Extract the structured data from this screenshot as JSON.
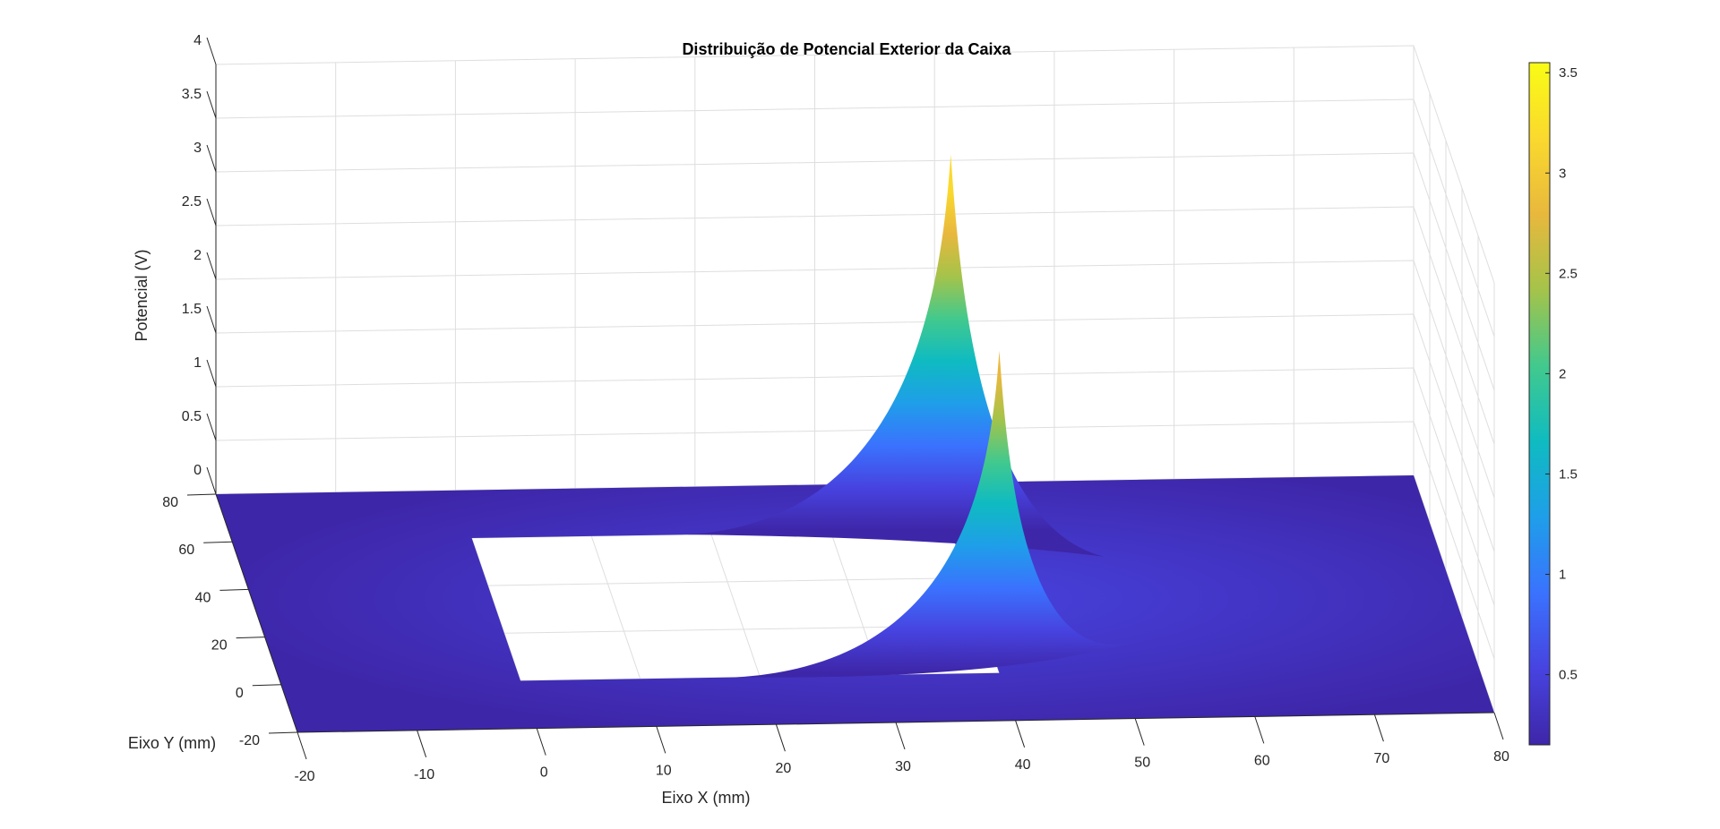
{
  "chart_data": {
    "type": "surface",
    "title": "Distribuição de Potencial Exterior da Caixa",
    "xlabel": "Eixo X (mm)",
    "ylabel": "Eixo Y (mm)",
    "zlabel": "Potencial (V)",
    "xlim": [
      -20,
      80
    ],
    "ylim": [
      -20,
      80
    ],
    "zlim": [
      0,
      4
    ],
    "x_ticks": [
      -20,
      -10,
      0,
      10,
      20,
      30,
      40,
      50,
      60,
      70,
      80
    ],
    "y_ticks": [
      -20,
      0,
      20,
      40,
      60,
      80
    ],
    "z_ticks": [
      0,
      0.5,
      1,
      1.5,
      2,
      2.5,
      3,
      3.5,
      4
    ],
    "x_tick_labels": [
      "-20",
      "-10",
      "0",
      "10",
      "20",
      "30",
      "40",
      "50",
      "60",
      "70",
      "80"
    ],
    "y_tick_labels": [
      "-20",
      "0",
      "20",
      "40",
      "60",
      "80"
    ],
    "z_tick_labels": [
      "0",
      "0.5",
      "1",
      "1.5",
      "2",
      "2.5",
      "3",
      "3.5",
      "4"
    ],
    "box_interior": {
      "x": [
        0,
        40
      ],
      "y": [
        0,
        60
      ],
      "note": "surface undefined inside the box"
    },
    "peaks": [
      {
        "x": 40,
        "y": 60,
        "z": 3.5
      },
      {
        "x": 40,
        "y": 0,
        "z": 3.0
      }
    ],
    "colorbar": {
      "range": [
        0.15,
        3.55
      ],
      "ticks": [
        0.5,
        1,
        1.5,
        2,
        2.5,
        3,
        3.5
      ],
      "tick_labels": [
        "0.5",
        "1",
        "1.5",
        "2",
        "2.5",
        "3",
        "3.5"
      ],
      "colormap": [
        "#3e26a8",
        "#4743e0",
        "#3a72fe",
        "#1f9ee9",
        "#0fbbc1",
        "#42c98d",
        "#a5c34a",
        "#e8b83d",
        "#fad92e",
        "#f9fb15"
      ]
    },
    "grid": true
  }
}
